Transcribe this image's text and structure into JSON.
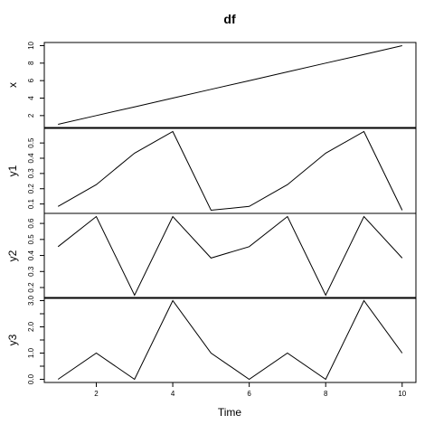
{
  "chart_data": {
    "type": "line",
    "title": "df",
    "xlabel": "Time",
    "x": [
      1,
      2,
      3,
      4,
      5,
      6,
      7,
      8,
      9,
      10
    ],
    "xlim": [
      1,
      10
    ],
    "x_ticks": [
      2,
      4,
      6,
      8,
      10
    ],
    "panels": [
      {
        "name": "x",
        "values": [
          1,
          2,
          3,
          4,
          5,
          6,
          7,
          8,
          9,
          10
        ],
        "ylim": [
          1,
          10
        ],
        "y_ticks": [
          2,
          4,
          6,
          8,
          10
        ],
        "y_tick_labels": [
          "2",
          "4",
          "6",
          "8",
          "10"
        ]
      },
      {
        "name": "y1",
        "values": [
          0.084,
          0.227,
          0.433,
          0.575,
          0.059,
          0.084,
          0.227,
          0.433,
          0.575,
          0.059
        ],
        "ylim": [
          0.059,
          0.575
        ],
        "y_ticks": [
          0.1,
          0.2,
          0.3,
          0.4,
          0.5
        ],
        "y_tick_labels": [
          "0.1",
          "0.2",
          "0.3",
          "0.4",
          "0.5"
        ]
      },
      {
        "name": "y2",
        "values": [
          0.455,
          0.643,
          0.152,
          0.643,
          0.384,
          0.455,
          0.643,
          0.152,
          0.643,
          0.384
        ],
        "ylim": [
          0.152,
          0.643
        ],
        "y_ticks": [
          0.2,
          0.3,
          0.4,
          0.5,
          0.6
        ],
        "y_tick_labels": [
          "0.2",
          "0.3",
          "0.4",
          "0.5",
          "0.6"
        ]
      },
      {
        "name": "y3",
        "values": [
          0,
          1,
          0,
          3,
          1,
          0,
          1,
          0,
          3,
          1
        ],
        "ylim": [
          0,
          3
        ],
        "y_ticks": [
          0,
          0.5,
          1,
          1.5,
          2,
          2.5,
          3
        ],
        "y_tick_labels": [
          "0.0",
          "",
          "1.0",
          "",
          "2.0",
          "",
          "3.0"
        ]
      }
    ]
  }
}
